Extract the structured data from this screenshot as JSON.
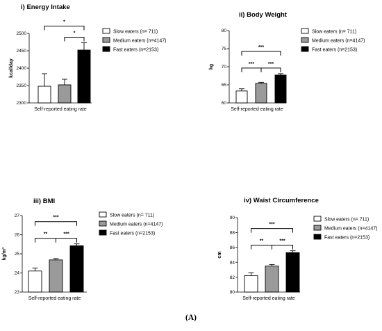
{
  "figure_caption": "(A)",
  "colors": {
    "slow": "#ffffff",
    "medium": "#9a9a9a",
    "fast": "#000000",
    "line": "#000000"
  },
  "chart_data": [
    {
      "type": "bar",
      "title": "i) Energy Intake",
      "xlabel": "Self-reported eating rate",
      "ylabel": "kcal/day",
      "ylim": [
        2300,
        2500
      ],
      "yticks": [
        "2300",
        "2350",
        "2400",
        "2450",
        "2500"
      ],
      "categories": [
        "Slow eaters (n= 711)",
        "Medium eaters (n=4147)",
        "Fast eaters (n=2153)"
      ],
      "values": [
        2348,
        2352,
        2452
      ],
      "errors": [
        36,
        16,
        21
      ],
      "significance": [
        {
          "from": 0,
          "to": 2,
          "label": "*"
        },
        {
          "from": 1,
          "to": 2,
          "label": "*"
        }
      ]
    },
    {
      "type": "bar",
      "title": "ii) Body Weight",
      "xlabel": "Self-reported eating rate",
      "ylabel": "kg",
      "ylim": [
        60,
        80
      ],
      "yticks": [
        "60",
        "65",
        "70",
        "75",
        "80"
      ],
      "categories": [
        "Slow eaters (n= 711)",
        "Medium eaters (n=4147)",
        "Fast eaters (n=2153)"
      ],
      "values": [
        63.3,
        65.4,
        67.7
      ],
      "errors": [
        0.6,
        0.3,
        0.4
      ],
      "significance": [
        {
          "from": 0,
          "to": 1,
          "label": "***"
        },
        {
          "from": 1,
          "to": 2,
          "label": "***"
        },
        {
          "from": 0,
          "to": 2,
          "label": "***"
        }
      ]
    },
    {
      "type": "bar",
      "title": "iii) BMI",
      "xlabel": "Self-reported eating rate",
      "ylabel": "kg/m²",
      "ylim": [
        23,
        27
      ],
      "yticks": [
        "23",
        "24",
        "25",
        "26",
        "27"
      ],
      "categories": [
        "Slow eaters (n= 711)",
        "Medium eaters (n=4147)",
        "Fast eaters (n=2153)"
      ],
      "values": [
        24.1,
        24.68,
        25.42
      ],
      "errors": [
        0.16,
        0.07,
        0.1
      ],
      "significance": [
        {
          "from": 0,
          "to": 1,
          "label": "**"
        },
        {
          "from": 1,
          "to": 2,
          "label": "***"
        },
        {
          "from": 0,
          "to": 2,
          "label": "***"
        }
      ]
    },
    {
      "type": "bar",
      "title": "iv) Waist Circumference",
      "xlabel": "Self-reported eating rate",
      "ylabel": "cm",
      "ylim": [
        80,
        90
      ],
      "yticks": [
        "80",
        "82",
        "84",
        "86",
        "88",
        "90"
      ],
      "categories": [
        "Slow eaters (n= 711)",
        "Medium eaters (n=4147)",
        "Fast eaters (n=2153)"
      ],
      "values": [
        82.2,
        83.5,
        85.3
      ],
      "errors": [
        0.4,
        0.2,
        0.25
      ],
      "significance": [
        {
          "from": 0,
          "to": 1,
          "label": "**"
        },
        {
          "from": 1,
          "to": 2,
          "label": "***"
        },
        {
          "from": 0,
          "to": 2,
          "label": "***"
        }
      ]
    }
  ]
}
